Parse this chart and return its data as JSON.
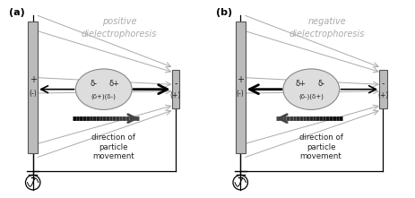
{
  "bg_color": "#ffffff",
  "electrode_color": "#bbbbbb",
  "electrode_border": "#555555",
  "particle_color": "#dddddd",
  "particle_border": "#888888",
  "text_gray": "#aaaaaa",
  "text_dark": "#222222",
  "circuit_color": "#000000",
  "panel_a": {
    "label": "(a)",
    "title_line1": "positive",
    "title_line2": "dielectrophoresis",
    "particle_labels": [
      "δ-",
      "δ+",
      "(δ+)(δ-)"
    ],
    "motion_label": "direction of\nparticle\nmovement",
    "motion_dir": "right"
  },
  "panel_b": {
    "label": "(b)",
    "title_line1": "negative",
    "title_line2": "dielectrophoresis",
    "particle_labels": [
      "δ+",
      "δ-",
      "(δ-)(δ+)"
    ],
    "motion_label": "direction of\nparticle\nmovement",
    "motion_dir": "left"
  }
}
